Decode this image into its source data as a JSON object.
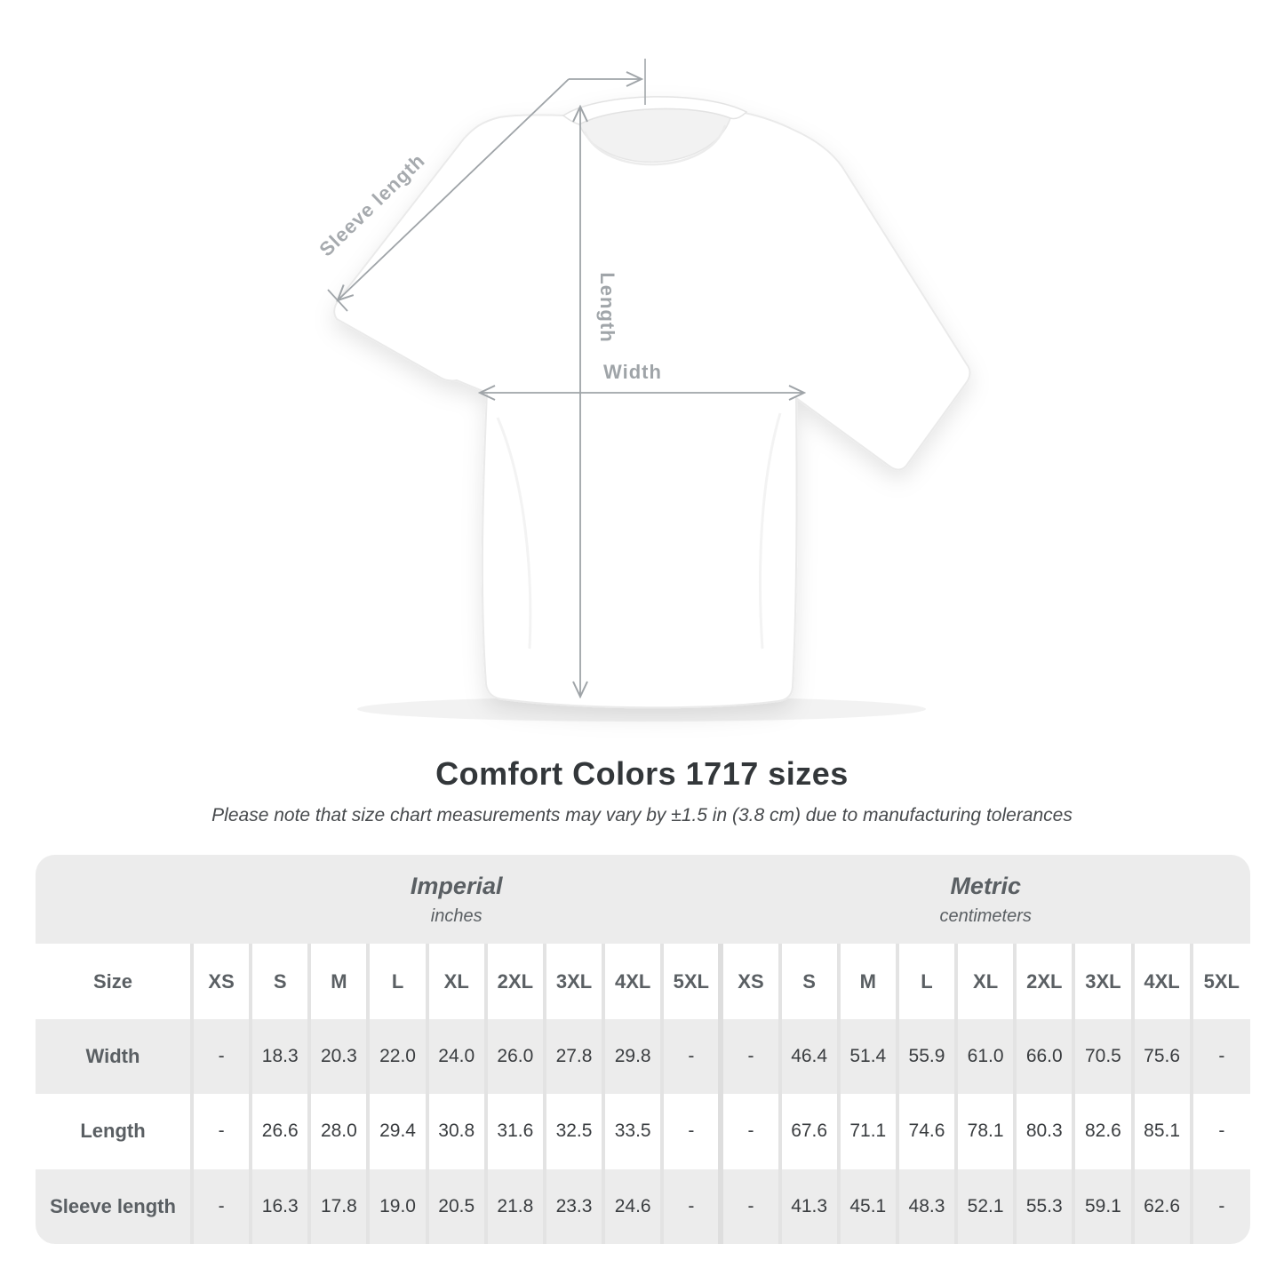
{
  "title": "Comfort Colors 1717 sizes",
  "note": "Please note that size chart measurements may vary by ±1.5 in (3.8 cm) due to manufacturing tolerances",
  "diagram": {
    "sleeve_label": "Sleeve length",
    "length_label": "Length",
    "width_label": "Width"
  },
  "chart_data": {
    "type": "table",
    "title": "Comfort Colors 1717 sizes",
    "size_header": "Size",
    "sizes": [
      "XS",
      "S",
      "M",
      "L",
      "XL",
      "2XL",
      "3XL",
      "4XL",
      "5XL"
    ],
    "sections": [
      {
        "name": "Imperial",
        "unit": "inches"
      },
      {
        "name": "Metric",
        "unit": "centimeters"
      }
    ],
    "rows": [
      {
        "label": "Width",
        "imperial": [
          "-",
          "18.3",
          "20.3",
          "22.0",
          "24.0",
          "26.0",
          "27.8",
          "29.8",
          "-"
        ],
        "metric": [
          "-",
          "46.4",
          "51.4",
          "55.9",
          "61.0",
          "66.0",
          "70.5",
          "75.6",
          "-"
        ]
      },
      {
        "label": "Length",
        "imperial": [
          "-",
          "26.6",
          "28.0",
          "29.4",
          "30.8",
          "31.6",
          "32.5",
          "33.5",
          "-"
        ],
        "metric": [
          "-",
          "67.6",
          "71.1",
          "74.6",
          "78.1",
          "80.3",
          "82.6",
          "85.1",
          "-"
        ]
      },
      {
        "label": "Sleeve length",
        "imperial": [
          "-",
          "16.3",
          "17.8",
          "19.0",
          "20.5",
          "21.8",
          "23.3",
          "24.6",
          "-"
        ],
        "metric": [
          "-",
          "41.3",
          "45.1",
          "48.3",
          "52.1",
          "55.3",
          "59.1",
          "62.6",
          "-"
        ]
      }
    ]
  },
  "colors": {
    "band_gray": "#ececec",
    "divider": "#e3e3e3",
    "label_gray": "#5a5f63",
    "value_dark": "#3a3d40",
    "arrow_gray": "#9fa4a8",
    "diagram_label_gray": "#a6aaae"
  }
}
